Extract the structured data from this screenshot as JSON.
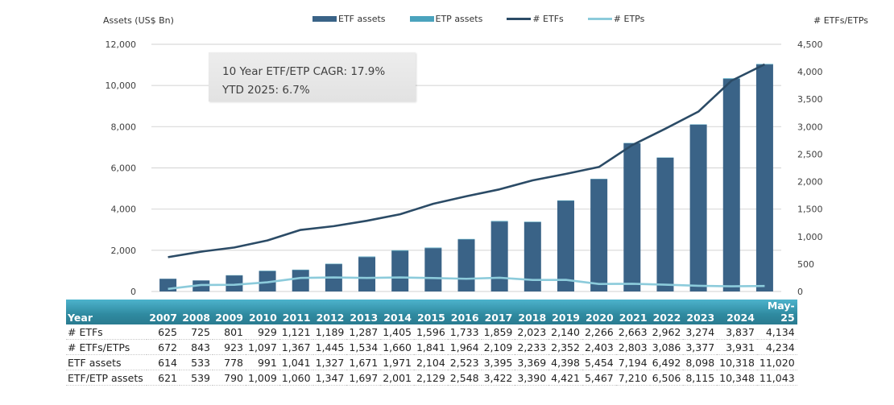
{
  "chart_data": {
    "type": "bar",
    "categories": [
      "2007",
      "2008",
      "2009",
      "2010",
      "2011",
      "2012",
      "2013",
      "2014",
      "2015",
      "2016",
      "2017",
      "2018",
      "2019",
      "2020",
      "2021",
      "2022",
      "2023",
      "2024",
      "May-25"
    ],
    "series": [
      {
        "name": "ETF assets",
        "kind": "bar",
        "axis": "left",
        "color": "#3a6387",
        "values": [
          614,
          533,
          778,
          991,
          1041,
          1327,
          1671,
          1971,
          2104,
          2523,
          3395,
          3369,
          4398,
          5454,
          7194,
          6492,
          8098,
          10318,
          11020
        ]
      },
      {
        "name": "ETP assets",
        "kind": "bar-stacked",
        "axis": "left",
        "color": "#4aa3bd",
        "values": [
          7,
          6,
          12,
          18,
          19,
          20,
          26,
          30,
          25,
          25,
          27,
          21,
          23,
          13,
          16,
          14,
          17,
          30,
          23
        ]
      },
      {
        "name": "# ETFs",
        "kind": "line",
        "axis": "right",
        "color": "#2b4b66",
        "values": [
          625,
          725,
          801,
          929,
          1121,
          1189,
          1287,
          1405,
          1596,
          1733,
          1859,
          2023,
          2140,
          2266,
          2663,
          2962,
          3274,
          3837,
          4134
        ]
      },
      {
        "name": "# ETPs",
        "kind": "line",
        "axis": "right",
        "color": "#8ccbdb",
        "values": [
          47,
          118,
          122,
          168,
          246,
          256,
          247,
          255,
          245,
          231,
          250,
          210,
          212,
          137,
          140,
          124,
          103,
          94,
          100
        ]
      }
    ],
    "title": "",
    "ylabel": "Assets (US$ Bn)",
    "y2label": "# ETFs/ETPs",
    "ylim": [
      0,
      12000
    ],
    "y2lim": [
      0,
      4500
    ],
    "yticks": [
      "0",
      "2,000",
      "4,000",
      "6,000",
      "8,000",
      "10,000",
      "12,000"
    ],
    "y2ticks": [
      "0",
      "500",
      "1,000",
      "1,500",
      "2,000",
      "2,500",
      "3,000",
      "3,500",
      "4,000",
      "4,500"
    ],
    "grid": true,
    "legend": "top-center",
    "annotation": [
      "10 Year ETF/ETP CAGR: 17.9%",
      "YTD 2025: 6.7%"
    ]
  },
  "legend": [
    {
      "label": "ETF assets",
      "type": "bar",
      "color": "#3a6387"
    },
    {
      "label": "ETP assets",
      "type": "bar",
      "color": "#4aa3bd"
    },
    {
      "label": "# ETFs",
      "type": "line",
      "color": "#2b4b66"
    },
    {
      "label": "# ETPs",
      "type": "line",
      "color": "#8ccbdb"
    }
  ],
  "table": {
    "header_label": "Year",
    "years": [
      "2007",
      "2008",
      "2009",
      "2010",
      "2011",
      "2012",
      "2013",
      "2014",
      "2015",
      "2016",
      "2017",
      "2018",
      "2019",
      "2020",
      "2021",
      "2022",
      "2023",
      "2024",
      "May-25"
    ],
    "rows": [
      {
        "label": "# ETFs",
        "values": [
          "625",
          "725",
          "801",
          "929",
          "1,121",
          "1,189",
          "1,287",
          "1,405",
          "1,596",
          "1,733",
          "1,859",
          "2,023",
          "2,140",
          "2,266",
          "2,663",
          "2,962",
          "3,274",
          "3,837",
          "4,134"
        ]
      },
      {
        "label": "# ETFs/ETPs",
        "values": [
          "672",
          "843",
          "923",
          "1,097",
          "1,367",
          "1,445",
          "1,534",
          "1,660",
          "1,841",
          "1,964",
          "2,109",
          "2,233",
          "2,352",
          "2,403",
          "2,803",
          "3,086",
          "3,377",
          "3,931",
          "4,234"
        ]
      },
      {
        "label": "ETF assets",
        "values": [
          "614",
          "533",
          "778",
          "991",
          "1,041",
          "1,327",
          "1,671",
          "1,971",
          "2,104",
          "2,523",
          "3,395",
          "3,369",
          "4,398",
          "5,454",
          "7,194",
          "6,492",
          "8,098",
          "10,318",
          "11,020"
        ]
      },
      {
        "label": "ETF/ETP assets",
        "values": [
          "621",
          "539",
          "790",
          "1,009",
          "1,060",
          "1,347",
          "1,697",
          "2,001",
          "2,129",
          "2,548",
          "3,422",
          "3,390",
          "4,421",
          "5,467",
          "7,210",
          "6,506",
          "8,115",
          "10,348",
          "11,043"
        ]
      }
    ]
  }
}
